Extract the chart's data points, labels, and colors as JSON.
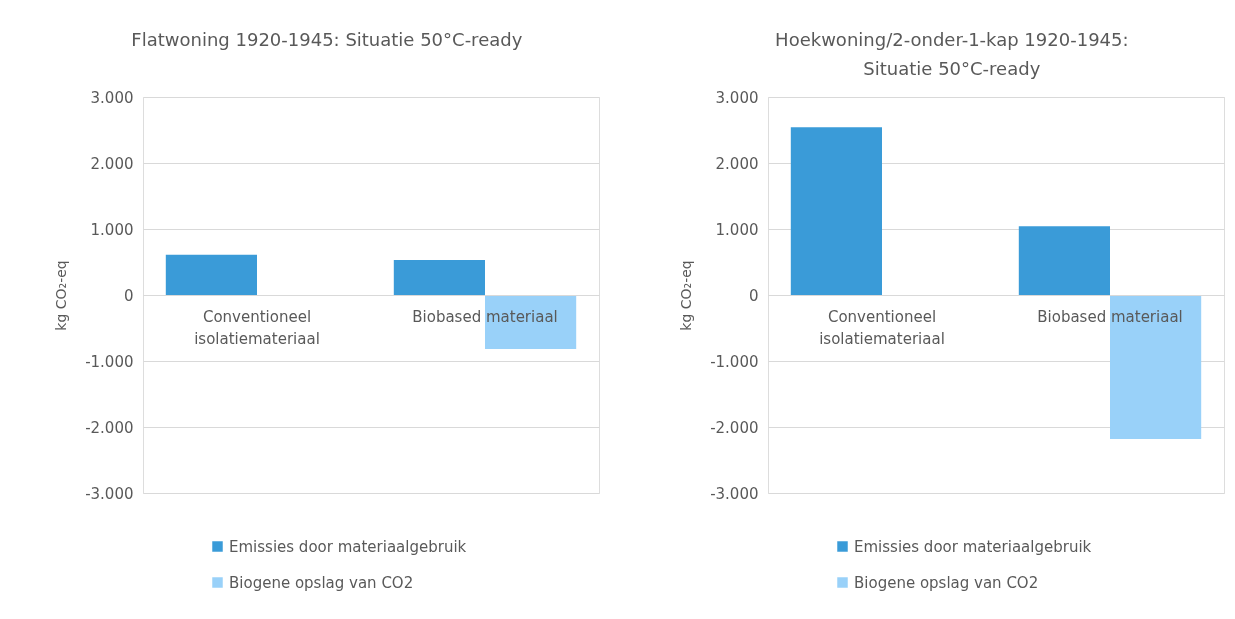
{
  "chart_data": [
    {
      "type": "bar",
      "title": "Flatwoning 1920-1945: Situatie 50°C-ready",
      "ylabel": "kg CO₂-eq",
      "categories": [
        "Conventioneel isolatiemateriaal",
        "Biobased materiaal"
      ],
      "series": [
        {
          "name": "Emissies door materiaalgebruik",
          "color": "#3a9bd8",
          "values": [
            610,
            530
          ]
        },
        {
          "name": "Biogene opslag van CO2",
          "color": "#99d1f9",
          "values": [
            null,
            -820
          ]
        }
      ],
      "ylim": [
        -3000,
        3000
      ],
      "yticks": [
        {
          "value": -3000,
          "label": "-3.000"
        },
        {
          "value": -2000,
          "label": "-2.000"
        },
        {
          "value": -1000,
          "label": "-1.000"
        },
        0,
        {
          "value": 1000,
          "label": "1.000"
        },
        {
          "value": 2000,
          "label": "2.000"
        },
        {
          "value": 3000,
          "label": "3.000"
        }
      ],
      "grid": "y",
      "legend": "bottom"
    },
    {
      "type": "bar",
      "title": "Hoekwoning/2-onder-1-kap 1920-1945: Situatie 50°C-ready",
      "ylabel": "kg CO₂-eq",
      "categories": [
        "Conventioneel isolatiemateriaal",
        "Biobased materiaal"
      ],
      "series": [
        {
          "name": "Emissies door materiaalgebruik",
          "color": "#3a9bd8",
          "values": [
            2540,
            1040
          ]
        },
        {
          "name": "Biogene opslag van CO2",
          "color": "#99d1f9",
          "values": [
            null,
            -2180
          ]
        }
      ],
      "ylim": [
        -3000,
        3000
      ],
      "yticks": [
        {
          "value": -3000,
          "label": "-3.000"
        },
        {
          "value": -2000,
          "label": "-2.000"
        },
        {
          "value": -1000,
          "label": "-1.000"
        },
        0,
        {
          "value": 1000,
          "label": "1.000"
        },
        {
          "value": 2000,
          "label": "2.000"
        },
        {
          "value": 3000,
          "label": "3.000"
        }
      ],
      "grid": "y",
      "legend": "bottom"
    }
  ]
}
